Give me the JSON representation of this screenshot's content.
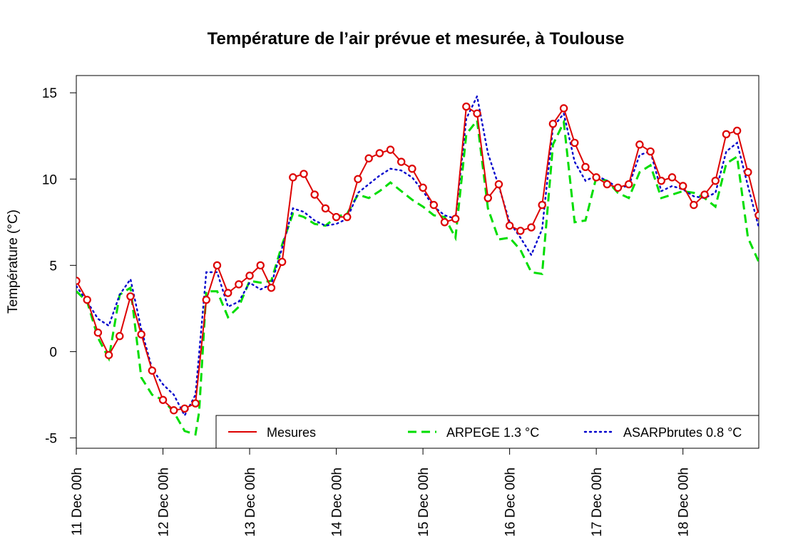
{
  "chart_data": {
    "type": "line",
    "title": "Température de l’air prévue et mesurée, à Toulouse",
    "ylabel": "Température (°C)",
    "xlabel": "",
    "x_ticks": [
      {
        "x": 0,
        "label": "11 Dec 00h"
      },
      {
        "x": 24,
        "label": "12 Dec 00h"
      },
      {
        "x": 48,
        "label": "13 Dec 00h"
      },
      {
        "x": 72,
        "label": "14 Dec 00h"
      },
      {
        "x": 96,
        "label": "15 Dec 00h"
      },
      {
        "x": 120,
        "label": "16 Dec 00h"
      },
      {
        "x": 144,
        "label": "17 Dec 00h"
      },
      {
        "x": 168,
        "label": "18 Dec 00h"
      }
    ],
    "y_ticks": [
      -5,
      0,
      5,
      10,
      15
    ],
    "xlim": [
      0,
      189
    ],
    "ylim": [
      -5.6,
      16
    ],
    "legend_position": "bottom-right",
    "series": [
      {
        "name": "Mesures",
        "color": "#dd0000",
        "style": "solid-with-circles",
        "x": [
          0,
          3,
          6,
          9,
          12,
          15,
          18,
          21,
          24,
          27,
          30,
          33,
          36,
          39,
          42,
          45,
          48,
          51,
          54,
          57,
          60,
          63,
          66,
          69,
          72,
          75,
          78,
          81,
          84,
          87,
          90,
          93,
          96,
          99,
          102,
          105,
          108,
          111,
          114,
          117,
          120,
          123,
          126,
          129,
          132,
          135,
          138,
          141,
          144,
          147,
          150,
          153,
          156,
          159,
          162,
          165,
          168,
          171,
          174,
          177,
          180,
          183,
          186,
          189
        ],
        "values": [
          4.1,
          3.0,
          1.1,
          -0.2,
          0.9,
          3.2,
          1.0,
          -1.1,
          -2.8,
          -3.4,
          -3.3,
          -3.0,
          3.0,
          5.0,
          3.4,
          3.9,
          4.4,
          5.0,
          3.7,
          5.2,
          10.1,
          10.3,
          9.1,
          8.3,
          7.8,
          7.8,
          10.0,
          11.2,
          11.5,
          11.7,
          11.0,
          10.6,
          9.5,
          8.5,
          7.5,
          7.7,
          14.2,
          13.8,
          8.9,
          9.7,
          7.3,
          7.0,
          7.2,
          8.5,
          13.2,
          14.1,
          12.1,
          10.7,
          10.1,
          9.7,
          9.5,
          9.7,
          12.0,
          11.6,
          9.9,
          10.1,
          9.6,
          8.5,
          9.1,
          9.9,
          12.6,
          12.8,
          10.4,
          7.9
        ]
      },
      {
        "name": "ARPEGE 1.3 °C",
        "color": "#00dd00",
        "style": "dashed",
        "x": [
          0,
          3,
          6,
          9,
          12,
          15,
          18,
          21,
          24,
          27,
          30,
          33,
          34,
          36,
          39,
          42,
          45,
          48,
          51,
          54,
          57,
          60,
          63,
          66,
          69,
          72,
          75,
          78,
          81,
          84,
          87,
          90,
          93,
          96,
          99,
          102,
          105,
          108,
          111,
          114,
          117,
          120,
          123,
          126,
          129,
          132,
          135,
          138,
          141,
          144,
          147,
          150,
          153,
          156,
          159,
          162,
          165,
          168,
          171,
          174,
          177,
          180,
          183,
          186,
          189
        ],
        "values": [
          3.5,
          2.9,
          0.8,
          -0.4,
          3.3,
          3.7,
          -1.5,
          -2.5,
          -2.8,
          -3.5,
          -4.6,
          -4.8,
          -3.5,
          3.5,
          3.5,
          2.0,
          2.6,
          4.1,
          4.0,
          4.1,
          6.2,
          8.0,
          7.8,
          7.4,
          7.3,
          7.8,
          8.0,
          9.1,
          8.9,
          9.3,
          9.8,
          9.3,
          8.8,
          8.4,
          7.9,
          7.8,
          6.6,
          12.6,
          13.4,
          8.3,
          6.5,
          6.6,
          5.9,
          4.6,
          4.5,
          12.0,
          13.3,
          7.5,
          7.6,
          10.1,
          9.9,
          9.2,
          8.9,
          10.4,
          10.8,
          8.9,
          9.1,
          9.3,
          9.2,
          8.9,
          8.4,
          10.9,
          11.3,
          6.6,
          5.2
        ]
      },
      {
        "name": "ASARPbrutes 0.8 °C",
        "color": "#0000cc",
        "style": "dotted",
        "x": [
          0,
          3,
          6,
          9,
          12,
          15,
          18,
          21,
          24,
          27,
          30,
          33,
          36,
          39,
          42,
          45,
          48,
          51,
          54,
          57,
          60,
          63,
          66,
          69,
          72,
          75,
          78,
          81,
          84,
          87,
          90,
          93,
          96,
          99,
          102,
          105,
          108,
          111,
          114,
          117,
          120,
          123,
          126,
          129,
          132,
          135,
          138,
          141,
          144,
          147,
          150,
          153,
          156,
          159,
          162,
          165,
          168,
          171,
          174,
          177,
          180,
          183,
          186,
          189
        ],
        "values": [
          3.8,
          2.9,
          1.9,
          1.5,
          3.3,
          4.2,
          1.3,
          -1.0,
          -1.9,
          -2.5,
          -3.7,
          -2.5,
          4.6,
          4.6,
          2.6,
          2.9,
          4.0,
          3.6,
          3.9,
          6.0,
          8.3,
          8.1,
          7.6,
          7.3,
          7.4,
          7.7,
          9.2,
          9.7,
          10.2,
          10.6,
          10.5,
          10.1,
          9.3,
          8.4,
          7.9,
          7.7,
          13.5,
          14.8,
          11.5,
          9.6,
          7.5,
          6.6,
          5.6,
          7.1,
          13.0,
          13.8,
          11.0,
          9.9,
          10.2,
          9.9,
          9.5,
          9.6,
          11.4,
          11.6,
          9.3,
          9.6,
          9.4,
          9.0,
          8.9,
          9.2,
          11.6,
          12.1,
          9.6,
          7.2
        ]
      }
    ]
  }
}
